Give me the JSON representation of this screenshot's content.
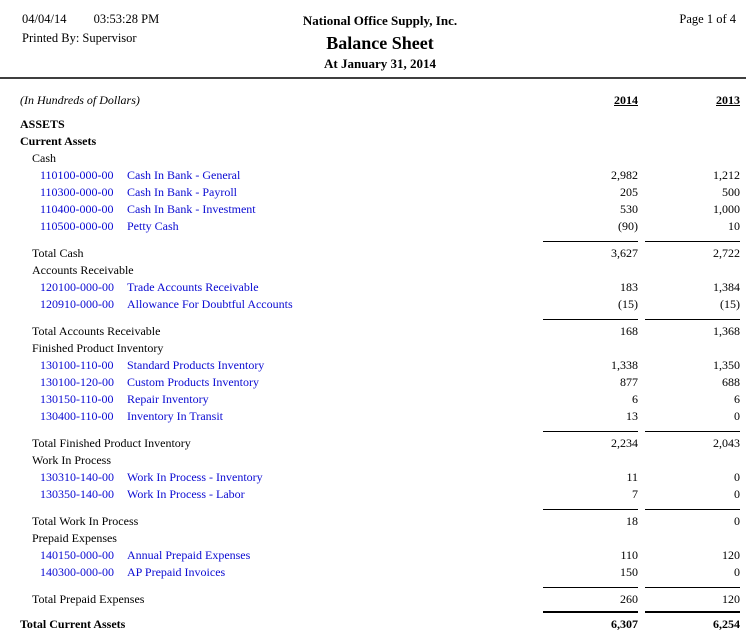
{
  "header": {
    "date": "04/04/14",
    "time": "03:53:28 PM",
    "printed_by_label": "Printed By:",
    "printed_by": "Supervisor",
    "company": "National Office Supply, Inc.",
    "title": "Balance Sheet",
    "subtitle": "At January 31, 2014",
    "page": "Page 1 of 4"
  },
  "columns": {
    "units_note": "(In Hundreds of Dollars)",
    "year_current": "2014",
    "year_prior": "2013"
  },
  "colors": {
    "link_blue": "#0a0ad2",
    "text": "#000000",
    "background": "#ffffff"
  },
  "body": {
    "section_title": "ASSETS",
    "group_title": "Current Assets",
    "subgroups": [
      {
        "title": "Cash",
        "accounts": [
          {
            "number": "110100-000-00",
            "desc": "Cash In Bank - General",
            "v2014": "2,982",
            "v2013": "1,212"
          },
          {
            "number": "110300-000-00",
            "desc": "Cash In Bank - Payroll",
            "v2014": "205",
            "v2013": "500"
          },
          {
            "number": "110400-000-00",
            "desc": "Cash In Bank - Investment",
            "v2014": "530",
            "v2013": "1,000"
          },
          {
            "number": "110500-000-00",
            "desc": "Petty Cash",
            "v2014": "(90)",
            "v2013": "10"
          }
        ],
        "total_label": "Total Cash",
        "t2014": "3,627",
        "t2013": "2,722"
      },
      {
        "title": "Accounts Receivable",
        "accounts": [
          {
            "number": "120100-000-00",
            "desc": "Trade Accounts Receivable",
            "v2014": "183",
            "v2013": "1,384"
          },
          {
            "number": "120910-000-00",
            "desc": "Allowance For Doubtful Accounts",
            "v2014": "(15)",
            "v2013": "(15)"
          }
        ],
        "total_label": "Total Accounts Receivable",
        "t2014": "168",
        "t2013": "1,368"
      },
      {
        "title": "Finished Product Inventory",
        "accounts": [
          {
            "number": "130100-110-00",
            "desc": "Standard Products Inventory",
            "v2014": "1,338",
            "v2013": "1,350"
          },
          {
            "number": "130100-120-00",
            "desc": "Custom Products Inventory",
            "v2014": "877",
            "v2013": "688"
          },
          {
            "number": "130150-110-00",
            "desc": "Repair Inventory",
            "v2014": "6",
            "v2013": "6"
          },
          {
            "number": "130400-110-00",
            "desc": "Inventory In Transit",
            "v2014": "13",
            "v2013": "0"
          }
        ],
        "total_label": "Total Finished Product Inventory",
        "t2014": "2,234",
        "t2013": "2,043"
      },
      {
        "title": "Work In Process",
        "accounts": [
          {
            "number": "130310-140-00",
            "desc": "Work In Process - Inventory",
            "v2014": "11",
            "v2013": "0"
          },
          {
            "number": "130350-140-00",
            "desc": "Work In Process - Labor",
            "v2014": "7",
            "v2013": "0"
          }
        ],
        "total_label": "Total Work In Process",
        "t2014": "18",
        "t2013": "0"
      },
      {
        "title": "Prepaid Expenses",
        "accounts": [
          {
            "number": "140150-000-00",
            "desc": "Annual Prepaid Expenses",
            "v2014": "110",
            "v2013": "120"
          },
          {
            "number": "140300-000-00",
            "desc": "AP Prepaid Invoices",
            "v2014": "150",
            "v2013": "0"
          }
        ],
        "total_label": "Total Prepaid Expenses",
        "t2014": "260",
        "t2013": "120"
      }
    ],
    "grand_total": {
      "label": "Total Current Assets",
      "v2014": "6,307",
      "v2013": "6,254"
    }
  }
}
